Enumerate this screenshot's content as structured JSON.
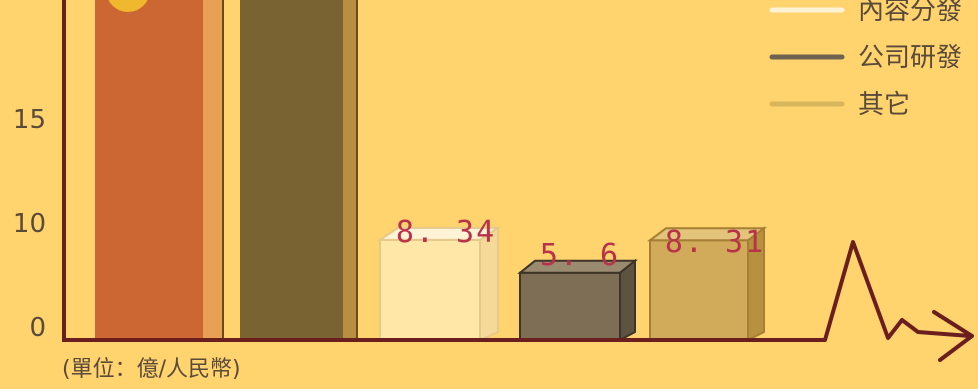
{
  "chart_data": {
    "type": "bar",
    "unit_label": "(單位：億/人民幣)",
    "y_ticks": [
      "0",
      "10",
      "15"
    ],
    "ylim": [
      0,
      20
    ],
    "series": [
      {
        "name": "",
        "value": null,
        "color": "#CC6633",
        "label": ""
      },
      {
        "name": "",
        "value": null,
        "color": "#7A6333",
        "label": ""
      },
      {
        "name": "內容分發",
        "value": 8.34,
        "color": "#FFE7A8",
        "label": "8. 34"
      },
      {
        "name": "公司研發",
        "value": 5.6,
        "color": "#7E6E55",
        "label": "5. 6"
      },
      {
        "name": "其它",
        "value": 8.31,
        "color": "#D2AB5A",
        "label": "8. 31"
      }
    ],
    "legend": [
      {
        "name": "內容分發",
        "color": "#FFF3D6"
      },
      {
        "name": "公司研發",
        "color": "#6E6250"
      },
      {
        "name": "其它",
        "color": "#D8B65E"
      }
    ],
    "colors": {
      "background": "#FFD36E",
      "axis": "#6B1E1E"
    }
  }
}
